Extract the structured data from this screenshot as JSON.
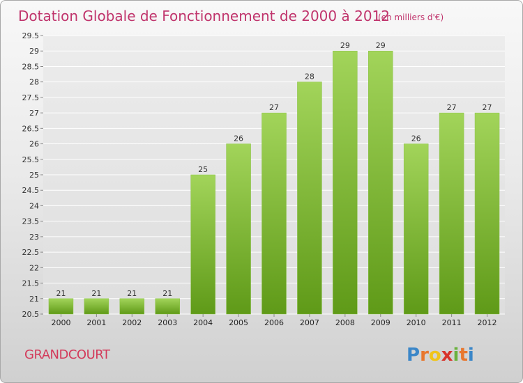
{
  "chart_data": {
    "type": "bar",
    "title": "Dotation Globale de Fonctionnement de 2000 à 2012",
    "subtitle": "(en milliers d'€)",
    "categories": [
      "2000",
      "2001",
      "2002",
      "2003",
      "2004",
      "2005",
      "2006",
      "2007",
      "2008",
      "2009",
      "2010",
      "2011",
      "2012"
    ],
    "values": [
      21,
      21,
      21,
      21,
      25,
      26,
      27,
      28,
      29,
      29,
      26,
      27,
      27
    ],
    "ylim": [
      20.5,
      29.5
    ],
    "yticks": [
      "20.5",
      "21",
      "21.5",
      "22",
      "22.5",
      "23",
      "23.5",
      "24",
      "24.5",
      "25",
      "25.5",
      "26",
      "26.5",
      "27",
      "27.5",
      "28",
      "28.5",
      "29",
      "29.5"
    ],
    "xlabel": "",
    "ylabel": "",
    "grid": true,
    "legend": "none"
  },
  "commune": "GRANDCOURT",
  "brand": {
    "letters": [
      "P",
      "r",
      "o",
      "x",
      "i",
      "t",
      "i"
    ],
    "colors": [
      "#3a86c8",
      "#e8772e",
      "#f0c419",
      "#d8342b",
      "#6ab23d",
      "#e8772e",
      "#3a86c8"
    ]
  },
  "colors": {
    "bar_light": "#a2d45a",
    "bar_dark": "#5f9a18",
    "grid": "#ffffff",
    "title": "#c0346c"
  }
}
